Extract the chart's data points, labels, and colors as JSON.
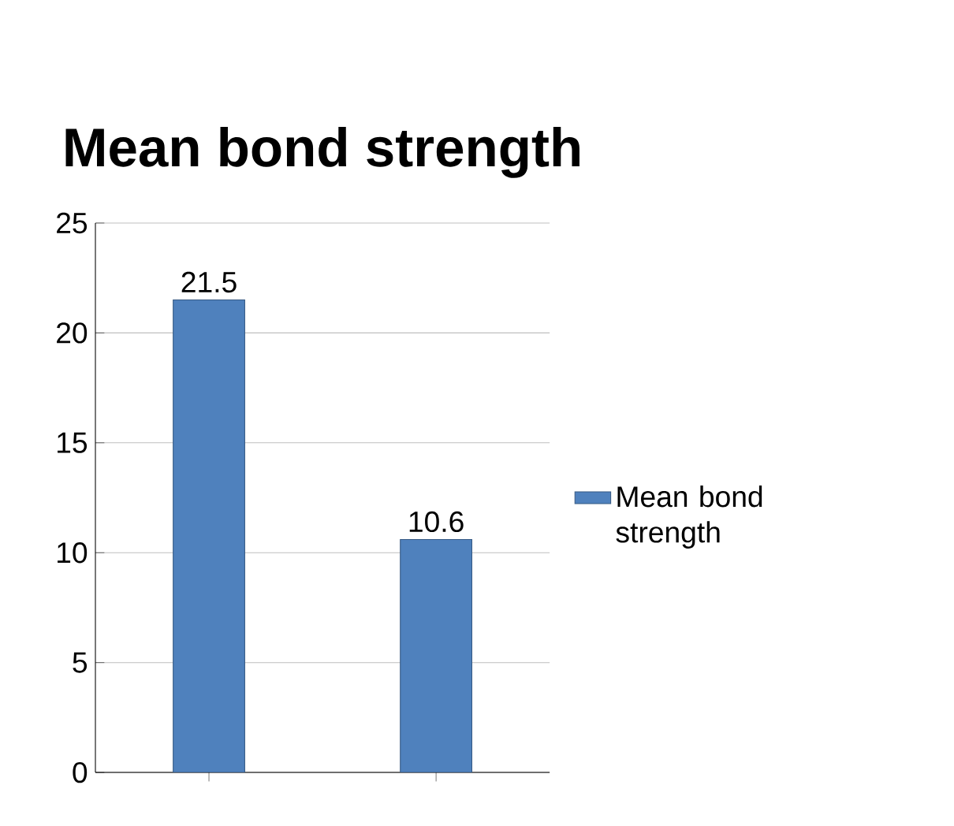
{
  "chart_data": {
    "type": "bar",
    "title": "Mean bond strength",
    "categories": [
      null,
      null
    ],
    "series": [
      {
        "name": "Mean bond strength",
        "color": "#4f81bd",
        "values": [
          21.5,
          10.6
        ]
      }
    ],
    "ylim": [
      0,
      25
    ],
    "yticks": [
      0,
      5,
      10,
      15,
      20,
      25
    ],
    "grid": "y",
    "legend": "right",
    "data_labels": true,
    "tick_labels": "y"
  }
}
